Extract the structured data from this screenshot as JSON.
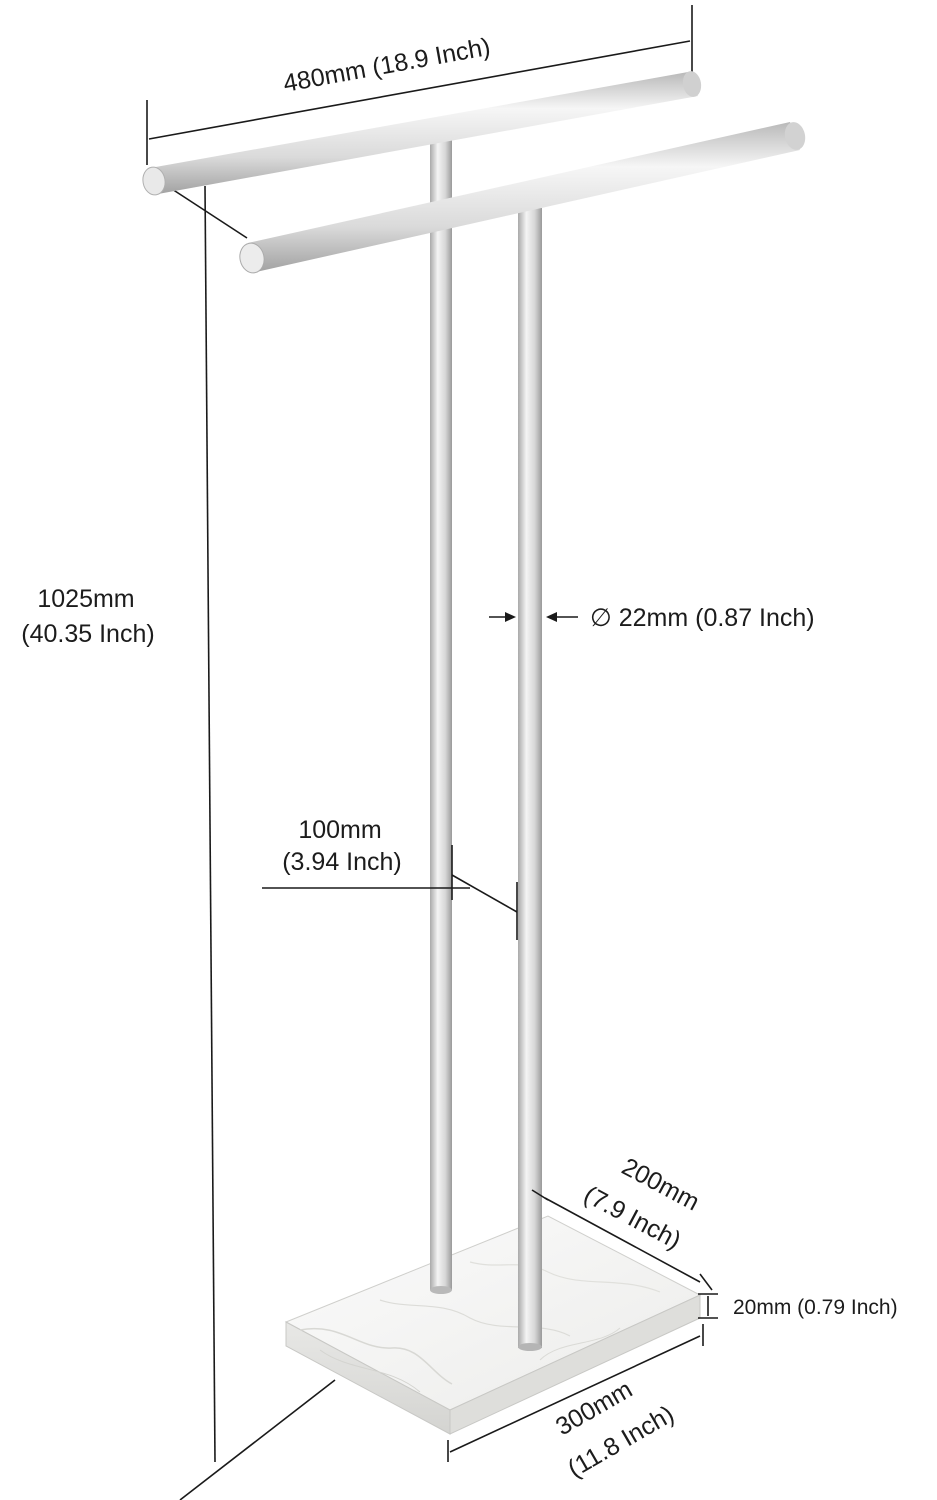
{
  "dimensions": {
    "width": "480mm (18.9 Inch)",
    "height_mm": "1025mm",
    "height_in": "(40.35 Inch)",
    "tube_diameter": "∅ 22mm (0.87 Inch)",
    "spacing_mm": "100mm",
    "spacing_in": "(3.94 Inch)",
    "base_depth_mm": "200mm",
    "base_depth_in": "(7.9 Inch)",
    "base_thickness": "20mm (0.79 Inch)",
    "base_length_mm": "300mm",
    "base_length_in": "(11.8 Inch)"
  },
  "colors": {
    "metal_light": "#f1f1f1",
    "metal_mid": "#cfcfcf",
    "metal_dark": "#9c9c9c",
    "marble": "#f4f4f3",
    "marble_vein": "#d9d9d6",
    "line": "#1a1a1a"
  }
}
